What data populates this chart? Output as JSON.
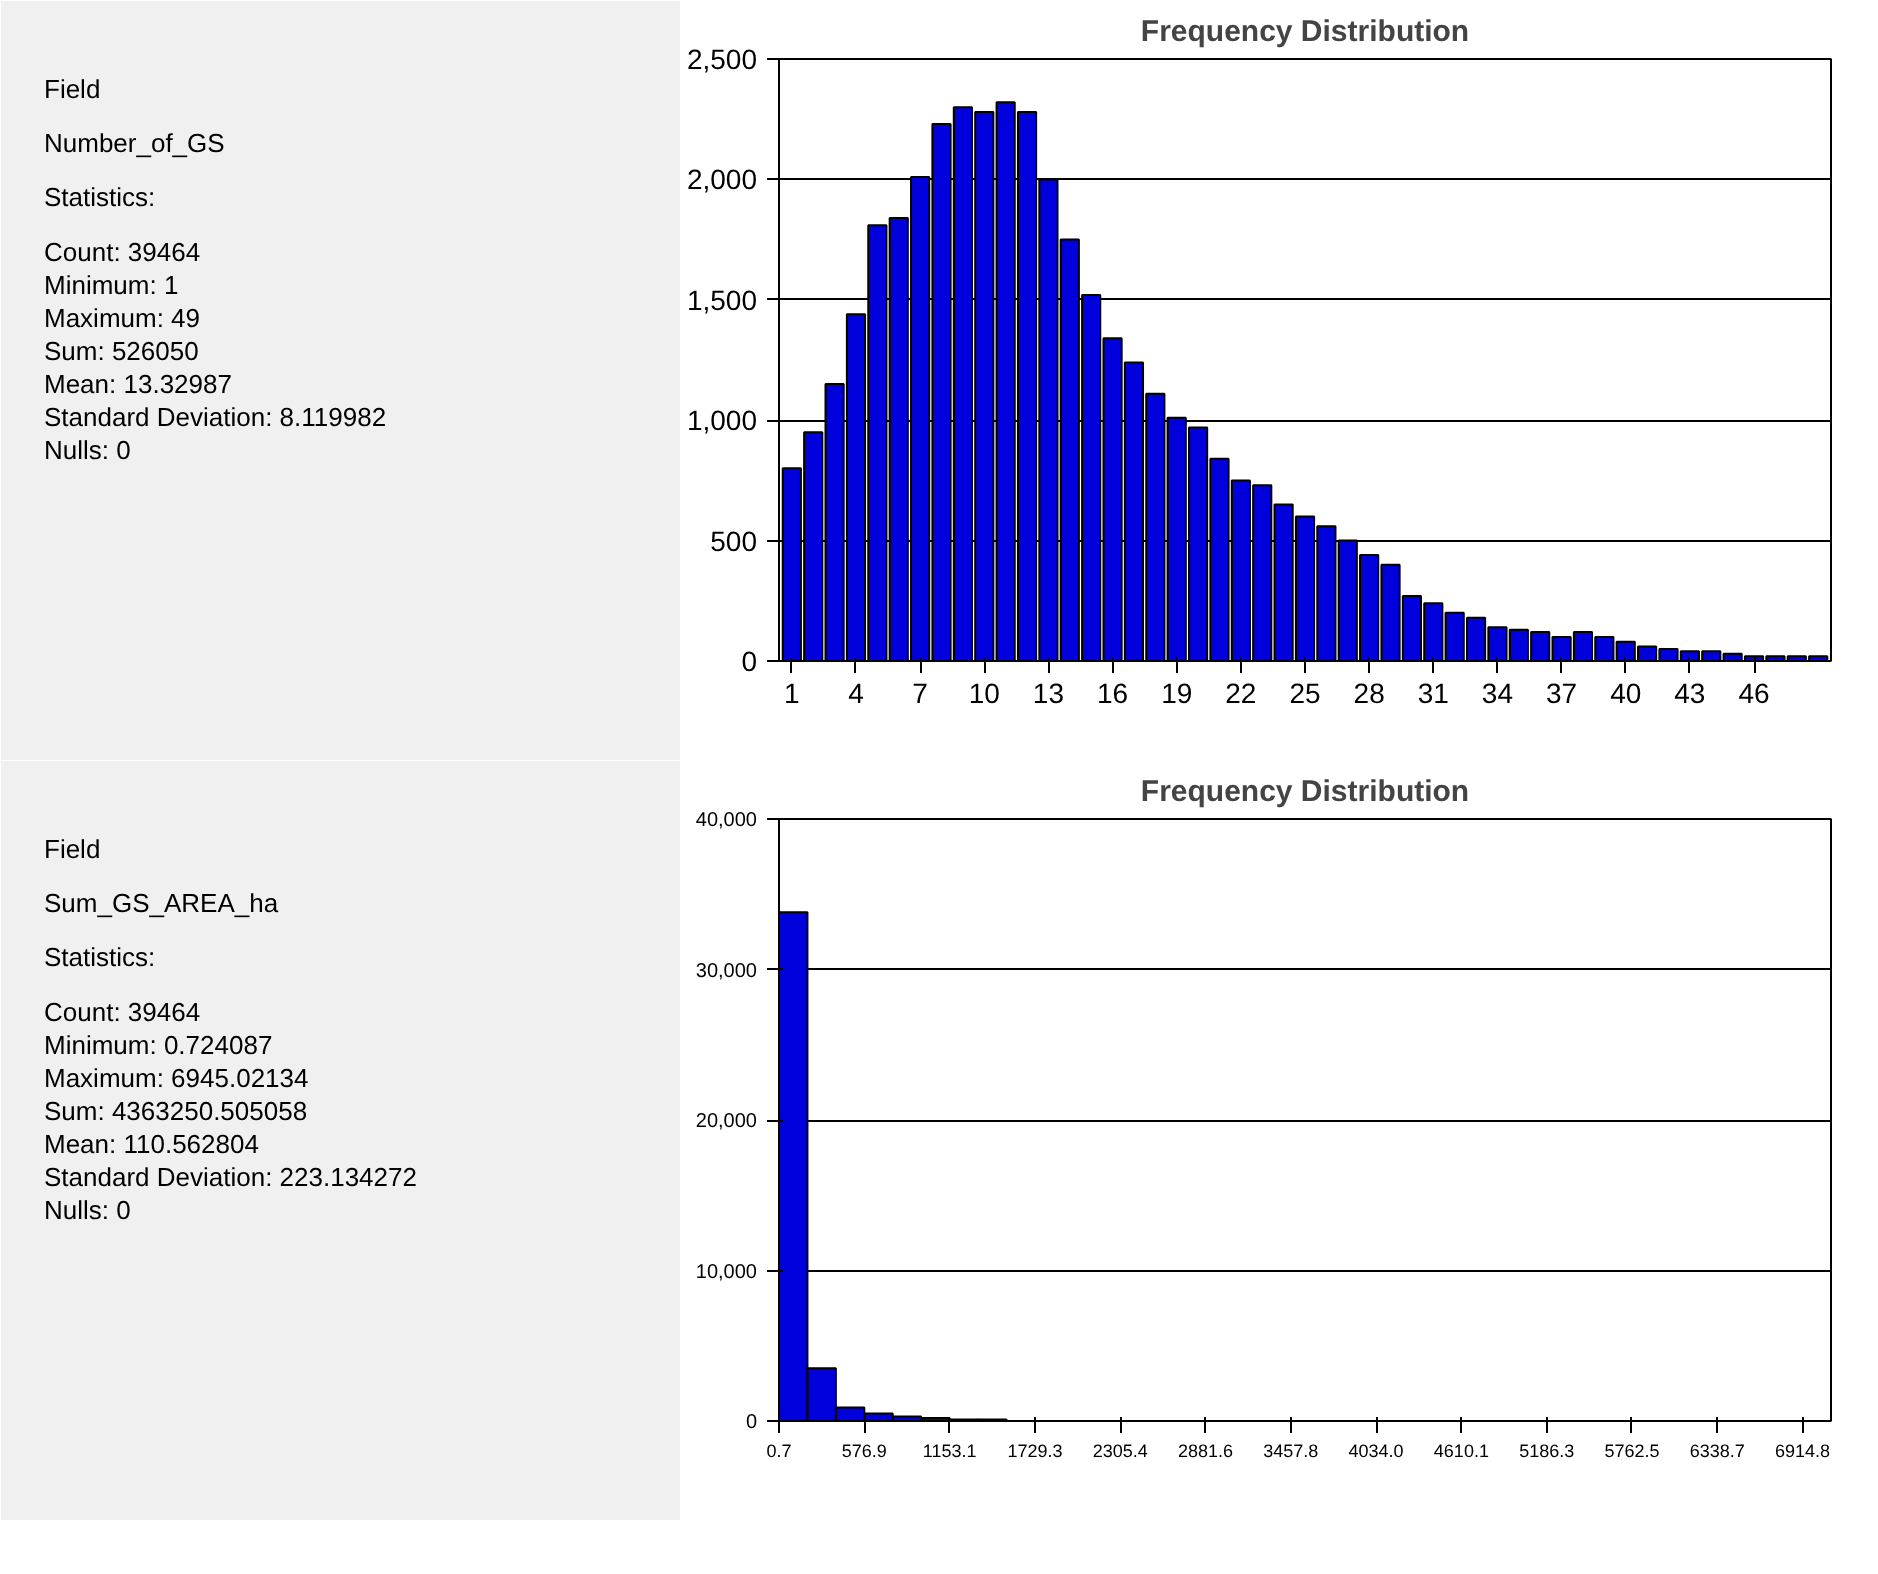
{
  "chart_data": [
    {
      "type": "other",
      "annotations": [
        "Field",
        "Number_of_GS",
        "Statistics:",
        "Count:     39464",
        "Minimum: 1",
        "Maximum: 49",
        "Sum:        526050",
        "Mean:      13.32987",
        "Standard Deviation: 8.119982",
        "Nulls:       0"
      ]
    },
    {
      "type": "bar",
      "title": "Frequency Distribution",
      "categories": [
        "1",
        null,
        null,
        "4",
        null,
        null,
        "7",
        null,
        null,
        "10",
        null,
        null,
        "13",
        null,
        null,
        "16",
        null,
        null,
        "19",
        null,
        null,
        "22",
        null,
        null,
        "25",
        null,
        null,
        "28",
        null,
        null,
        "31",
        null,
        null,
        "34",
        null,
        null,
        "37",
        null,
        null,
        "40",
        null,
        null,
        "43",
        null,
        null,
        "46",
        null,
        null,
        null
      ],
      "values": [
        800,
        950,
        1150,
        1440,
        1810,
        1840,
        2010,
        2230,
        2300,
        2280,
        2320,
        2280,
        2000,
        1750,
        1520,
        1340,
        1240,
        1110,
        1010,
        970,
        840,
        750,
        730,
        650,
        600,
        560,
        500,
        440,
        400,
        270,
        240,
        200,
        180,
        140,
        130,
        120,
        100,
        120,
        100,
        80,
        60,
        50,
        40,
        40,
        30,
        20,
        20,
        20,
        20
      ],
      "color": "#0000dd",
      "ylim": [
        0,
        2500
      ],
      "yticks": [
        0,
        {
          "value": 500,
          "label": "500"
        },
        {
          "value": 1000,
          "label": "1,000"
        },
        {
          "value": 1500,
          "label": "1,500"
        },
        {
          "value": 2000,
          "label": "2,000"
        },
        {
          "value": 2500,
          "label": "2,500"
        }
      ],
      "grid": "y"
    },
    {
      "type": "other",
      "annotations": [
        "Field",
        "Sum_GS_AREA_ha",
        "Statistics:",
        "Count:     39464",
        "Minimum: 0.724087",
        "Maximum: 6945.02134",
        "Sum:        4363250.505058",
        "Mean:      110.562804",
        "Standard Deviation: 223.134272",
        "Nulls:       0"
      ]
    },
    {
      "type": "histogram",
      "title": "Frequency Distribution",
      "bins": [
        0.7,
        192.8,
        384.8,
        576.9,
        768.9,
        961.0,
        1153.1,
        1345.1,
        1537.2,
        1729.3,
        1921.3,
        2113.3,
        2305.4,
        2497.5,
        2689.5,
        2881.6,
        3073.6,
        3265.7,
        3457.8,
        3649.8,
        3841.9,
        4034.0,
        4226.0,
        4418.0,
        4610.1,
        4802.2,
        4994.2,
        5186.3,
        5378.3,
        5570.4,
        5762.5,
        5954.5,
        6146.6,
        6338.7,
        6530.7,
        6722.8,
        6914.8,
        7106.8
      ],
      "values": [
        33800,
        3500,
        900,
        500,
        300,
        200,
        100,
        100,
        0,
        0,
        0,
        0,
        0,
        0,
        0,
        0,
        0,
        0,
        0,
        0,
        0,
        0,
        0,
        0,
        0,
        0,
        0,
        0,
        0,
        0,
        0,
        0,
        0,
        0,
        0,
        0,
        0
      ],
      "color": "#0000dd",
      "xlim": [
        0.7,
        7106.8
      ],
      "xticks": [
        0.7,
        576.9,
        1153.1,
        1729.3,
        2305.4,
        2881.6,
        3457.8,
        {
          "value": 4034.0,
          "label": "4034.0"
        },
        4610.1,
        5186.3,
        5762.5,
        6338.7,
        6914.8
      ],
      "ylim": [
        0,
        40000
      ],
      "yticks": [
        0,
        {
          "value": 10000,
          "label": "10,000"
        },
        {
          "value": 20000,
          "label": "20,000"
        },
        {
          "value": 30000,
          "label": "30,000"
        },
        {
          "value": 40000,
          "label": "40,000"
        }
      ],
      "grid": "y"
    }
  ]
}
